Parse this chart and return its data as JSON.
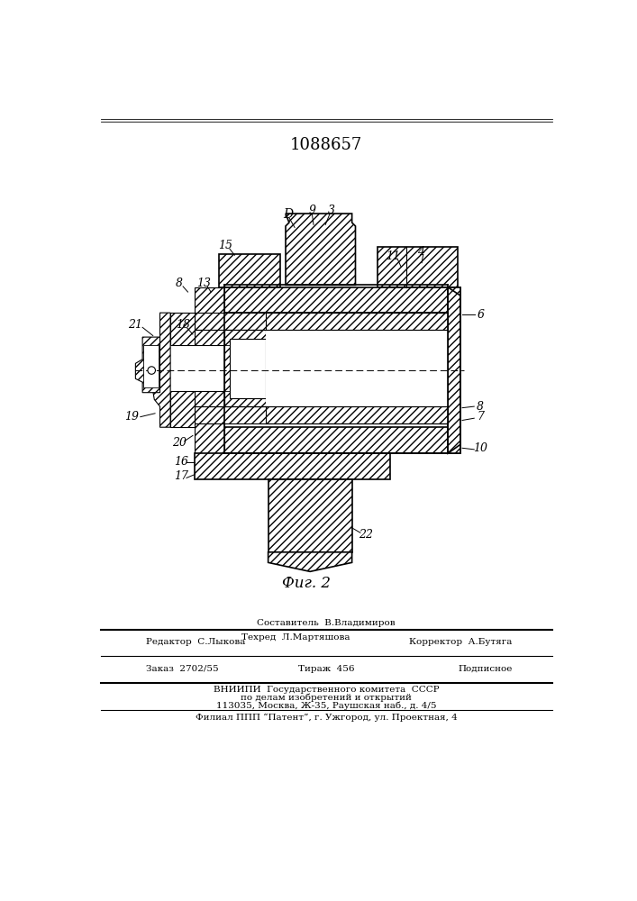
{
  "title": "1088657",
  "fig_label": "Фиг. 2",
  "bg_color": "#ffffff",
  "footer_line1": "Составитель  В.Владимиров",
  "footer_line2a": "Редактор  С.Лыкова",
  "footer_line2b": "Техред  Л.Мартяшова",
  "footer_line2c": "Корректор  А.Бутяга",
  "footer_line3a": "Заказ  2702/55",
  "footer_line3b": "Тираж  456",
  "footer_line3c": "Подписное",
  "footer_line4": "ВНИИПИ  Государственного комитета  СССР",
  "footer_line5": "по делам изобретений и открытий",
  "footer_line6": "113035, Москва, Ж-35, Раушская наб., д. 4/5",
  "footer_line7": "Филиал ППП “Патент”, г. Ужгород, ул. Проектная, 4"
}
